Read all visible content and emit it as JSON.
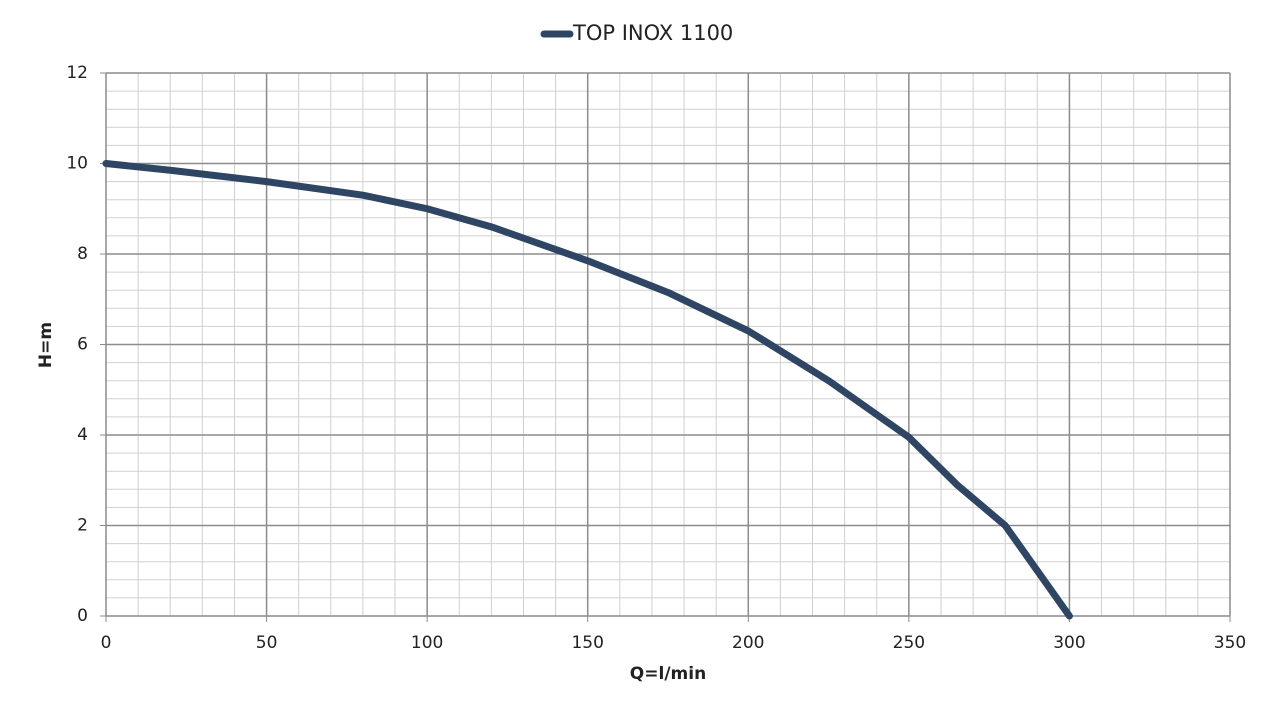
{
  "chart_data": {
    "type": "line",
    "x_label": "Q=l/min",
    "y_label": "H=m",
    "series": [
      {
        "name": "TOP INOX 1100",
        "color": "#2e4563",
        "x": [
          0,
          20,
          50,
          80,
          100,
          120,
          150,
          175,
          200,
          225,
          250,
          265,
          280,
          290,
          300
        ],
        "values": [
          10,
          9.85,
          9.6,
          9.3,
          9.0,
          8.6,
          7.85,
          7.15,
          6.3,
          5.2,
          3.95,
          2.9,
          2.0,
          1.0,
          0
        ]
      }
    ],
    "xlim": [
      0,
      350
    ],
    "xticks": [
      0,
      50,
      100,
      150,
      200,
      250,
      300,
      350
    ],
    "ylim": [
      0,
      12
    ],
    "yticks": [
      0,
      2,
      4,
      6,
      8,
      10,
      12
    ],
    "x_minor_step": 10,
    "y_minor_step": 0.4,
    "grid": true,
    "legend": "top"
  }
}
